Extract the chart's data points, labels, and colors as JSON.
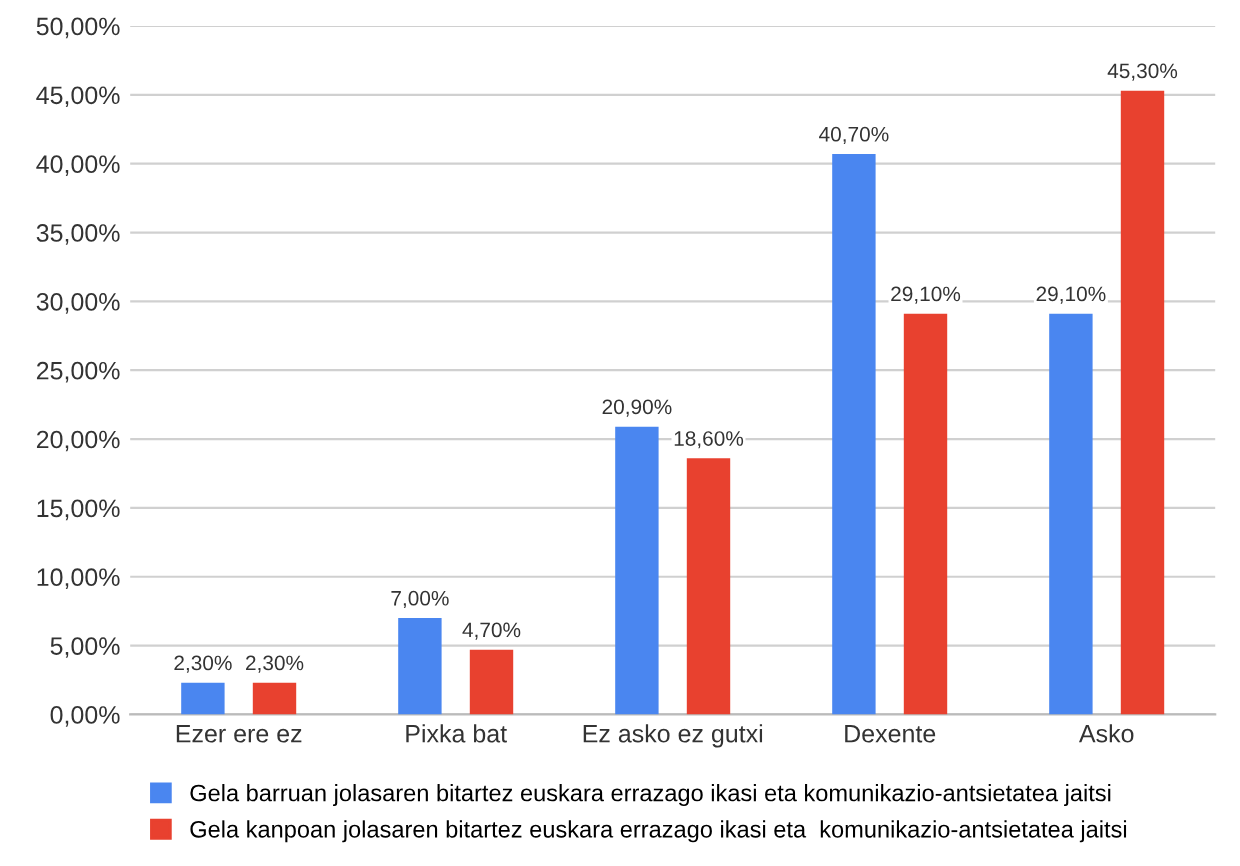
{
  "chart_data": {
    "type": "bar",
    "categories": [
      "Ezer ere ez",
      "Pixka bat",
      "Ez asko ez gutxi",
      "Dexente",
      "Asko"
    ],
    "series": [
      {
        "name": "Gela barruan jolasaren bitartez euskara errazago ikasi eta komunikazio-antsietatea jaitsi",
        "color": "#4a86f0",
        "values": [
          2.3,
          7.0,
          20.9,
          40.7,
          29.1
        ],
        "value_labels": [
          "2,30%",
          "7,00%",
          "20,90%",
          "40,70%",
          "29,10%"
        ]
      },
      {
        "name": "Gela kanpoan jolasaren bitartez euskara errazago ikasi eta  komunikazio-antsietatea jaitsi",
        "color": "#e8412f",
        "values": [
          2.3,
          4.7,
          18.6,
          29.1,
          45.3
        ],
        "value_labels": [
          "2,30%",
          "4,70%",
          "18,60%",
          "29,10%",
          "45,30%"
        ]
      }
    ],
    "ylim": [
      0,
      50
    ],
    "yticks": [
      {
        "value": 0,
        "label": "0,00%"
      },
      {
        "value": 5,
        "label": "5,00%"
      },
      {
        "value": 10,
        "label": "10,00%"
      },
      {
        "value": 15,
        "label": "15,00%"
      },
      {
        "value": 20,
        "label": "20,00%"
      },
      {
        "value": 25,
        "label": "25,00%"
      },
      {
        "value": 30,
        "label": "30,00%"
      },
      {
        "value": 35,
        "label": "35,00%"
      },
      {
        "value": 40,
        "label": "40,00%"
      },
      {
        "value": 45,
        "label": "45,00%"
      },
      {
        "value": 50,
        "label": "50,00%"
      }
    ],
    "grid": "y",
    "legend": "bottom"
  }
}
